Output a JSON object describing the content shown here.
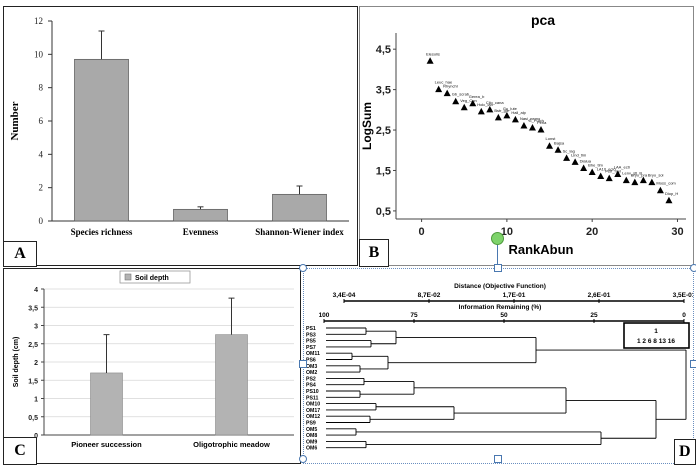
{
  "panels": {
    "a": "A",
    "b": "B",
    "c": "C",
    "d": "D"
  },
  "chart_data": [
    {
      "id": "A",
      "type": "bar",
      "title": "",
      "xlabel": "",
      "ylabel": "Number",
      "ylim": [
        0,
        12
      ],
      "yticks": [
        "0",
        "2",
        "4",
        "6",
        "8",
        "10",
        "12"
      ],
      "categories": [
        "Species richness",
        "Evenness",
        "Shannon-Wiener index"
      ],
      "values": [
        9.7,
        0.7,
        1.6
      ],
      "errors": [
        1.7,
        0.15,
        0.5
      ],
      "bar_color": "#a9a9a9"
    },
    {
      "id": "B",
      "type": "scatter",
      "title": "pca",
      "xlabel": "RankAbun",
      "ylabel": "LogSum",
      "xlim": [
        -3,
        31
      ],
      "ylim": [
        0.3,
        4.9
      ],
      "xticks": [
        "0",
        "10",
        "20",
        "30"
      ],
      "yticks": [
        "0,5",
        "1,5",
        "2,5",
        "3,5",
        "4,5"
      ],
      "points": [
        {
          "x": 1,
          "y": 4.2,
          "label": "Elesolis"
        },
        {
          "x": 2,
          "y": 3.5,
          "label": "Leuc_hae"
        },
        {
          "x": 3,
          "y": 3.4,
          "label": "Rhynchl"
        },
        {
          "x": 4,
          "y": 3.2,
          "label": "Gb_scrab"
        },
        {
          "x": 5,
          "y": 3.05,
          "label": "Veg_Con"
        },
        {
          "x": 6,
          "y": 3.15,
          "label": "Gerea_b"
        },
        {
          "x": 7,
          "y": 2.95,
          "label": "Holc_lan"
        },
        {
          "x": 8,
          "y": 3.0,
          "label": "Cilo_cana"
        },
        {
          "x": 9,
          "y": 2.8,
          "label": "Bstr_gle"
        },
        {
          "x": 10,
          "y": 2.85,
          "label": "Gu_lute"
        },
        {
          "x": 11,
          "y": 2.75,
          "label": "Hall_alp"
        },
        {
          "x": 12,
          "y": 2.6,
          "label": "Nasi_nemo"
        },
        {
          "x": 13,
          "y": 2.55,
          "label": "G_Pulch"
        },
        {
          "x": 14,
          "y": 2.5,
          "label": "Perla"
        },
        {
          "x": 15,
          "y": 2.1,
          "label": "Lonst"
        },
        {
          "x": 16,
          "y": 2.0,
          "label": "Bajsa"
        },
        {
          "x": 17,
          "y": 1.8,
          "label": "Sc_lag"
        },
        {
          "x": 18,
          "y": 1.7,
          "label": "Lind_tlm"
        },
        {
          "x": 19,
          "y": 1.55,
          "label": "Dialua"
        },
        {
          "x": 20,
          "y": 1.45,
          "label": "Bhe_tlm"
        },
        {
          "x": 21,
          "y": 1.35,
          "label": "LA10_ecio"
        },
        {
          "x": 22,
          "y": 1.3,
          "label": "Pstr_mel"
        },
        {
          "x": 23,
          "y": 1.4,
          "label": "LAA_ecti"
        },
        {
          "x": 24,
          "y": 1.25,
          "label": "Lenv_stl"
        },
        {
          "x": 25,
          "y": 1.2,
          "label": "Bryo_pra"
        },
        {
          "x": 26,
          "y": 1.25,
          "label": "B"
        },
        {
          "x": 27,
          "y": 1.2,
          "label": "Bryo_sol"
        },
        {
          "x": 28,
          "y": 1.0,
          "label": "Moss_com"
        },
        {
          "x": 29,
          "y": 0.75,
          "label": "Diop_H"
        }
      ],
      "marker_color": "#000000"
    },
    {
      "id": "C",
      "type": "bar",
      "title": "",
      "legend": [
        "Soil depth"
      ],
      "legend_position": "top",
      "xlabel": "",
      "ylabel": "Soil depth (cm)",
      "ylim": [
        0,
        4
      ],
      "yticks": [
        "0",
        "0,5",
        "1",
        "1,5",
        "2",
        "2,5",
        "3",
        "3,5",
        "4"
      ],
      "categories": [
        "Pioneer succession",
        "Oligotrophic meadow"
      ],
      "values": [
        1.7,
        2.75
      ],
      "errors": [
        1.05,
        1.0
      ],
      "bar_color": "#b3b3b3"
    },
    {
      "id": "D",
      "type": "dendrogram",
      "top_axis_1_label": "Distance (Objective Function)",
      "top_axis_1_ticks": [
        "3,4E-04",
        "8,7E-02",
        "1,7E-01",
        "2,6E-01",
        "3,5E-01"
      ],
      "top_axis_2_label": "Information Remaining (%)",
      "top_axis_2_ticks": [
        "100",
        "75",
        "50",
        "25",
        "0"
      ],
      "group_box": [
        "1",
        "1 2 6 8 13 16"
      ],
      "leaves": [
        "PS1",
        "PS3",
        "PS5",
        "PS7",
        "OM11",
        "PS6",
        "OM3",
        "OM2",
        "PS2",
        "PS4",
        "PS10",
        "PS11",
        "OM10",
        "OM17",
        "OM12",
        "PS9",
        "OM5",
        "OM8",
        "OM9",
        "OM6"
      ]
    }
  ]
}
